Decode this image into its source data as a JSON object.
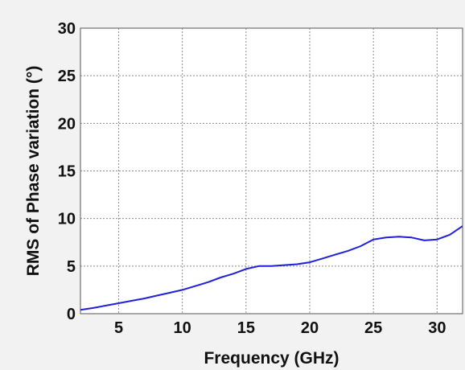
{
  "chart_data": {
    "type": "line",
    "title": "",
    "xlabel": "Frequency (GHz)",
    "ylabel": "RMS of Phase variation (°)",
    "xlim": [
      2,
      32
    ],
    "ylim": [
      0,
      30
    ],
    "x_ticks": [
      "5",
      "10",
      "15",
      "20",
      "25",
      "30"
    ],
    "y_ticks": [
      "0",
      "5",
      "10",
      "15",
      "20",
      "25",
      "30"
    ],
    "grid": true,
    "legend": "none",
    "colors": {
      "line": "#1f1fe0",
      "plot_background": "#ffffff",
      "figure_background": "#f2f2f2",
      "grid": "#8c8c8c"
    },
    "series": [
      {
        "x": [
          2,
          3,
          4,
          5,
          6,
          7,
          8,
          9,
          10,
          11,
          12,
          13,
          14,
          15,
          16,
          17,
          18,
          19,
          20,
          21,
          22,
          23,
          24,
          25,
          26,
          27,
          28,
          29,
          30,
          31,
          32
        ],
        "values": [
          0.4,
          0.6,
          0.85,
          1.1,
          1.35,
          1.6,
          1.9,
          2.2,
          2.5,
          2.9,
          3.3,
          3.8,
          4.2,
          4.7,
          5.0,
          5.0,
          5.1,
          5.2,
          5.4,
          5.8,
          6.2,
          6.6,
          7.1,
          7.8,
          8.0,
          8.1,
          8.0,
          7.7,
          7.8,
          8.3,
          9.2
        ]
      }
    ]
  }
}
